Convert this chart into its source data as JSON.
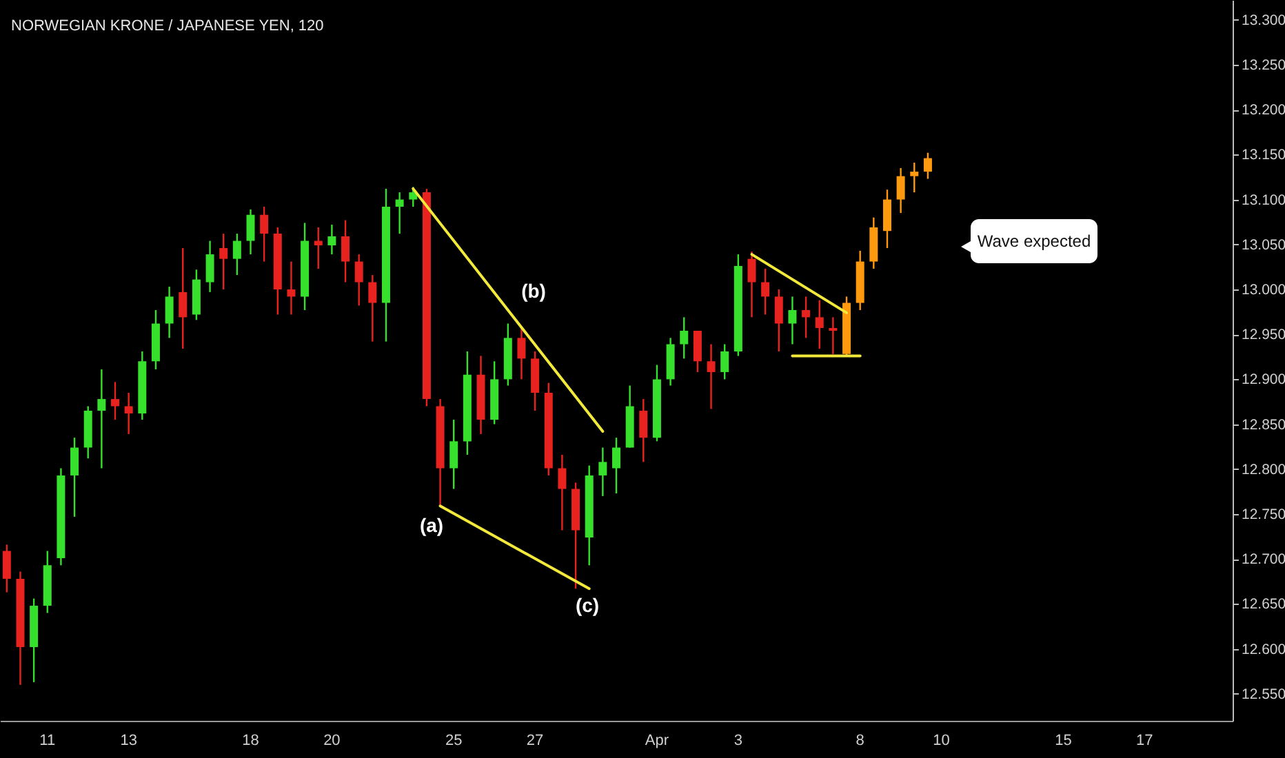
{
  "chart_data": {
    "type": "candlestick",
    "title": "NORWEGIAN KRONE / JAPANESE YEN, 120",
    "categories": [
      null,
      null,
      null,
      "11",
      null,
      null,
      null,
      null,
      null,
      "13",
      null,
      null,
      null,
      null,
      null,
      null,
      null,
      null,
      "18",
      null,
      null,
      null,
      null,
      null,
      "20",
      null,
      null,
      null,
      null,
      null,
      null,
      null,
      null,
      "25",
      null,
      null,
      null,
      null,
      null,
      "27",
      null,
      null,
      null,
      null,
      null,
      null,
      null,
      null,
      "Apr",
      null,
      null,
      null,
      null,
      null,
      "3",
      null,
      null,
      null,
      null,
      null,
      null,
      null,
      null,
      "8",
      null,
      null,
      null,
      null,
      null,
      "10",
      null,
      null,
      null,
      null,
      null,
      null,
      null,
      null,
      "15",
      null,
      null,
      null,
      null,
      null,
      "17",
      null,
      null,
      null,
      null,
      null,
      null
    ],
    "ohlc": [
      [
        12.709,
        12.716,
        12.663,
        12.678
      ],
      [
        12.678,
        12.686,
        12.56,
        12.602
      ],
      [
        12.602,
        12.656,
        12.563,
        12.648
      ],
      [
        12.648,
        12.709,
        12.64,
        12.693
      ],
      [
        12.701,
        12.801,
        12.693,
        12.793
      ],
      [
        12.793,
        12.835,
        12.747,
        12.824
      ],
      [
        12.824,
        12.87,
        12.812,
        12.865
      ],
      [
        12.865,
        12.911,
        12.801,
        12.878
      ],
      [
        12.878,
        12.897,
        12.855,
        12.87
      ],
      [
        12.87,
        12.885,
        12.839,
        12.862
      ],
      [
        12.862,
        12.931,
        12.855,
        12.92
      ],
      [
        12.92,
        12.977,
        12.911,
        12.962
      ],
      [
        12.962,
        13.003,
        12.946,
        12.992
      ],
      [
        12.997,
        13.046,
        12.934,
        12.969
      ],
      [
        12.972,
        13.022,
        12.966,
        13.011
      ],
      [
        13.008,
        13.054,
        12.997,
        13.039
      ],
      [
        13.046,
        13.062,
        13.0,
        13.034
      ],
      [
        13.034,
        13.062,
        13.016,
        13.054
      ],
      [
        13.054,
        13.089,
        13.039,
        13.083
      ],
      [
        13.083,
        13.092,
        13.031,
        13.062
      ],
      [
        13.062,
        13.069,
        12.972,
        13.0
      ],
      [
        13.0,
        13.031,
        12.972,
        12.992
      ],
      [
        12.992,
        13.074,
        12.977,
        13.054
      ],
      [
        13.054,
        13.069,
        13.023,
        13.049
      ],
      [
        13.049,
        13.072,
        13.039,
        13.059
      ],
      [
        13.059,
        13.077,
        13.008,
        13.031
      ],
      [
        13.031,
        13.039,
        12.982,
        13.008
      ],
      [
        13.008,
        13.016,
        12.942,
        12.985
      ],
      [
        12.985,
        13.112,
        12.942,
        13.092
      ],
      [
        13.092,
        13.108,
        13.062,
        13.1
      ],
      [
        13.1,
        13.114,
        13.092,
        13.108
      ],
      [
        13.108,
        13.112,
        12.87,
        12.878
      ],
      [
        12.87,
        12.878,
        12.759,
        12.801
      ],
      [
        12.801,
        12.855,
        12.778,
        12.831
      ],
      [
        12.831,
        12.931,
        12.816,
        12.905
      ],
      [
        12.905,
        12.926,
        12.839,
        12.855
      ],
      [
        12.855,
        12.92,
        12.85,
        12.9
      ],
      [
        12.9,
        12.962,
        12.893,
        12.946
      ],
      [
        12.946,
        12.957,
        12.9,
        12.923
      ],
      [
        12.923,
        12.931,
        12.865,
        12.885
      ],
      [
        12.885,
        12.896,
        12.793,
        12.801
      ],
      [
        12.801,
        12.816,
        12.732,
        12.778
      ],
      [
        12.778,
        12.785,
        12.667,
        12.732
      ],
      [
        12.724,
        12.804,
        12.693,
        12.793
      ],
      [
        12.793,
        12.824,
        12.77,
        12.808
      ],
      [
        12.801,
        12.835,
        12.773,
        12.824
      ],
      [
        12.824,
        12.893,
        12.824,
        12.87
      ],
      [
        12.865,
        12.878,
        12.808,
        12.835
      ],
      [
        12.835,
        12.916,
        12.831,
        12.9
      ],
      [
        12.9,
        12.946,
        12.893,
        12.939
      ],
      [
        12.939,
        12.969,
        12.923,
        12.954
      ],
      [
        12.954,
        12.954,
        12.908,
        12.92
      ],
      [
        12.92,
        12.939,
        12.867,
        12.908
      ],
      [
        12.908,
        12.939,
        12.9,
        12.931
      ],
      [
        12.931,
        13.039,
        12.926,
        13.026
      ],
      [
        13.034,
        13.042,
        12.969,
        13.008
      ],
      [
        13.008,
        13.023,
        12.972,
        12.992
      ],
      [
        12.992,
        13.0,
        12.931,
        12.962
      ],
      [
        12.962,
        12.992,
        12.939,
        12.977
      ],
      [
        12.977,
        12.992,
        12.946,
        12.969
      ],
      [
        12.969,
        12.988,
        12.934,
        12.957
      ],
      [
        12.957,
        12.969,
        12.928,
        12.954
      ],
      [
        12.928,
        12.992,
        12.926,
        12.985
      ],
      [
        12.985,
        13.043,
        12.977,
        13.031
      ],
      [
        13.031,
        13.08,
        13.023,
        13.069
      ],
      [
        13.065,
        13.111,
        13.046,
        13.1
      ],
      [
        13.1,
        13.135,
        13.085,
        13.126
      ],
      [
        13.126,
        13.141,
        13.108,
        13.131
      ],
      [
        13.131,
        13.152,
        13.123,
        13.146
      ],
      null,
      null,
      null,
      null,
      null,
      null,
      null,
      null,
      null,
      null,
      null,
      null,
      null,
      null,
      null,
      null,
      null,
      null,
      null,
      null,
      null,
      null
    ],
    "colors": [
      "#e8231f",
      "#e8231f",
      "#37e02c",
      "#37e02c",
      "#37e02c",
      "#37e02c",
      "#37e02c",
      "#37e02c",
      "#e8231f",
      "#e8231f",
      "#37e02c",
      "#37e02c",
      "#37e02c",
      "#e8231f",
      "#37e02c",
      "#37e02c",
      "#e8231f",
      "#37e02c",
      "#37e02c",
      "#e8231f",
      "#e8231f",
      "#e8231f",
      "#37e02c",
      "#e8231f",
      "#37e02c",
      "#e8231f",
      "#e8231f",
      "#e8231f",
      "#37e02c",
      "#37e02c",
      "#37e02c",
      "#e8231f",
      "#e8231f",
      "#37e02c",
      "#37e02c",
      "#e8231f",
      "#37e02c",
      "#37e02c",
      "#e8231f",
      "#e8231f",
      "#e8231f",
      "#e8231f",
      "#e8231f",
      "#37e02c",
      "#37e02c",
      "#37e02c",
      "#37e02c",
      "#e8231f",
      "#37e02c",
      "#37e02c",
      "#37e02c",
      "#e8231f",
      "#e8231f",
      "#37e02c",
      "#37e02c",
      "#e8231f",
      "#e8231f",
      "#e8231f",
      "#37e02c",
      "#e8231f",
      "#e8231f",
      "#e8231f",
      "#ff9a0e",
      "#ff9a0e",
      "#ff9a0e",
      "#ff9a0e",
      "#ff9a0e",
      "#ff9a0e",
      "#ff9a0e",
      null,
      null,
      null,
      null,
      null,
      null,
      null,
      null,
      null,
      null,
      null,
      null,
      null,
      null,
      null,
      null,
      null,
      null,
      null,
      null,
      null,
      null
    ],
    "series": [
      {
        "type": "line",
        "color": "#f2e93a",
        "values": [
          null,
          null,
          null,
          null,
          null,
          null,
          null,
          null,
          null,
          null,
          null,
          null,
          null,
          null,
          null,
          null,
          null,
          null,
          null,
          null,
          null,
          null,
          null,
          null,
          null,
          null,
          null,
          null,
          null,
          null,
          13.112,
          null,
          null,
          null,
          null,
          null,
          null,
          null,
          null,
          null,
          null,
          null,
          null,
          null,
          12.842,
          null,
          null,
          null,
          null,
          null,
          null,
          null,
          null,
          null,
          null,
          null,
          null,
          null,
          null,
          null,
          null,
          null,
          null,
          null,
          null,
          null,
          null,
          null,
          null,
          null,
          null,
          null,
          null,
          null,
          null,
          null,
          null,
          null,
          null,
          null,
          null,
          null,
          null,
          null,
          null,
          null,
          null,
          null,
          null,
          null,
          null
        ]
      },
      {
        "type": "line",
        "color": "#f2e93a",
        "values": [
          null,
          null,
          null,
          null,
          null,
          null,
          null,
          null,
          null,
          null,
          null,
          null,
          null,
          null,
          null,
          null,
          null,
          null,
          null,
          null,
          null,
          null,
          null,
          null,
          null,
          null,
          null,
          null,
          null,
          null,
          null,
          null,
          12.759,
          null,
          null,
          null,
          null,
          null,
          null,
          null,
          null,
          null,
          null,
          12.667,
          null,
          null,
          null,
          null,
          null,
          null,
          null,
          null,
          null,
          null,
          null,
          null,
          null,
          null,
          null,
          null,
          null,
          null,
          null,
          null,
          null,
          null,
          null,
          null,
          null,
          null,
          null,
          null,
          null,
          null,
          null,
          null,
          null,
          null,
          null,
          null,
          null,
          null,
          null,
          null,
          null,
          null,
          null,
          null,
          null,
          null,
          null
        ]
      },
      {
        "type": "line",
        "color": "#f2e93a",
        "values": [
          null,
          null,
          null,
          null,
          null,
          null,
          null,
          null,
          null,
          null,
          null,
          null,
          null,
          null,
          null,
          null,
          null,
          null,
          null,
          null,
          null,
          null,
          null,
          null,
          null,
          null,
          null,
          null,
          null,
          null,
          null,
          null,
          null,
          null,
          null,
          null,
          null,
          null,
          null,
          null,
          null,
          null,
          null,
          null,
          null,
          null,
          null,
          null,
          null,
          null,
          null,
          null,
          null,
          null,
          null,
          13.039,
          null,
          null,
          null,
          null,
          null,
          null,
          12.974,
          null,
          null,
          null,
          null,
          null,
          null,
          null,
          null,
          null,
          null,
          null,
          null,
          null,
          null,
          null,
          null,
          null,
          null,
          null,
          null,
          null,
          null,
          null,
          null,
          null,
          null,
          null,
          null
        ]
      },
      {
        "type": "line",
        "color": "#f2e93a",
        "values": [
          null,
          null,
          null,
          null,
          null,
          null,
          null,
          null,
          null,
          null,
          null,
          null,
          null,
          null,
          null,
          null,
          null,
          null,
          null,
          null,
          null,
          null,
          null,
          null,
          null,
          null,
          null,
          null,
          null,
          null,
          null,
          null,
          null,
          null,
          null,
          null,
          null,
          null,
          null,
          null,
          null,
          null,
          null,
          null,
          null,
          null,
          null,
          null,
          null,
          null,
          null,
          null,
          null,
          null,
          null,
          null,
          null,
          null,
          12.926,
          null,
          null,
          null,
          null,
          12.926,
          null,
          null,
          null,
          null,
          null,
          null,
          null,
          null,
          null,
          null,
          null,
          null,
          null,
          null,
          null,
          null,
          null,
          null,
          null,
          null,
          null,
          null,
          null,
          null,
          null,
          null,
          null
        ]
      }
    ],
    "ylim": [
      12.52,
      13.322
    ],
    "yticks": [
      {
        "value": 12.55,
        "label": "12.550"
      },
      {
        "value": 12.6,
        "label": "12.600"
      },
      {
        "value": 12.65,
        "label": "12.650"
      },
      {
        "value": 12.7,
        "label": "12.700"
      },
      {
        "value": 12.75,
        "label": "12.750"
      },
      {
        "value": 12.8,
        "label": "12.800"
      },
      {
        "value": 12.85,
        "label": "12.850"
      },
      {
        "value": 12.9,
        "label": "12.900"
      },
      {
        "value": 12.95,
        "label": "12.950"
      },
      {
        "value": 13,
        "label": "13.000"
      },
      {
        "value": 13.05,
        "label": "13.050"
      },
      {
        "value": 13.1,
        "label": "13.100"
      },
      {
        "value": 13.15,
        "label": "13.150"
      },
      {
        "value": 13.2,
        "label": "13.200"
      },
      {
        "value": 13.25,
        "label": "13.250"
      },
      {
        "value": 13.3,
        "label": "13.300"
      }
    ],
    "annotations": [
      "(a)",
      "(b)",
      "(c)",
      "Wave expected"
    ]
  }
}
